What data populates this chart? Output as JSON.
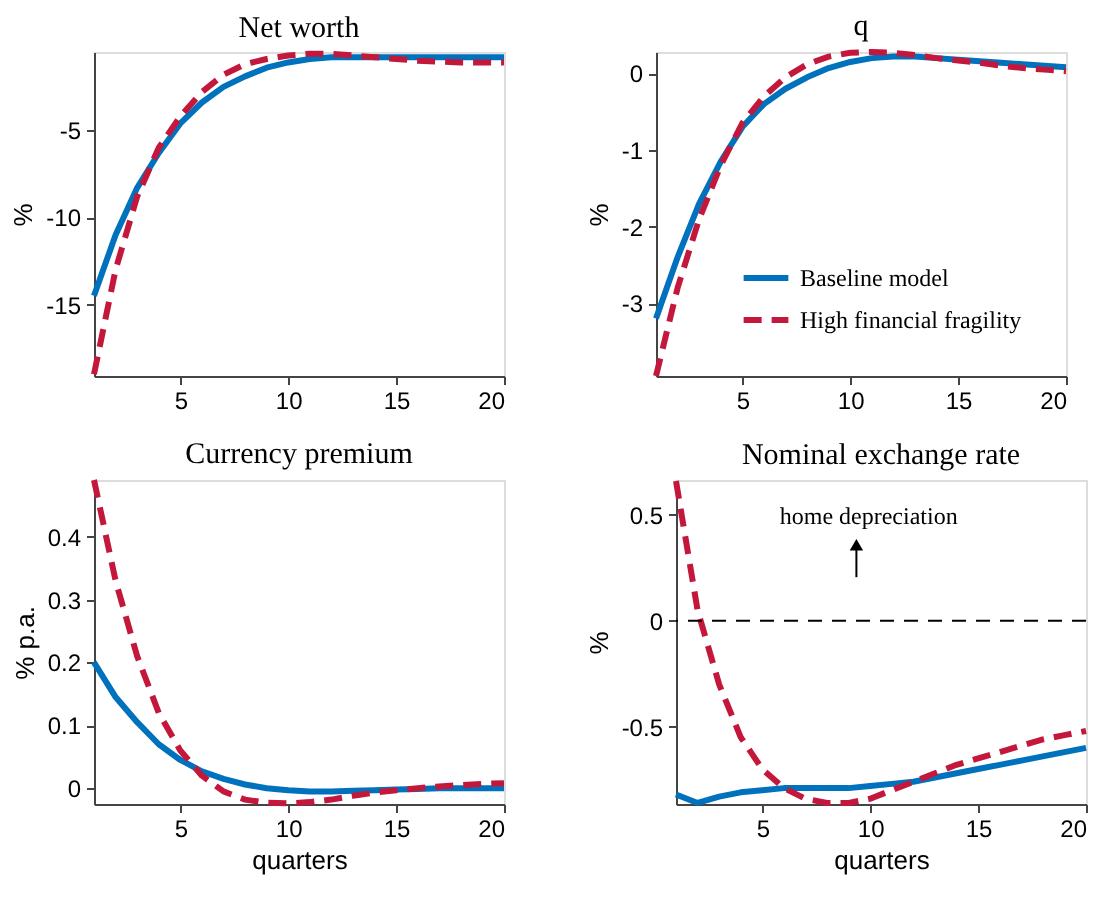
{
  "chart_data": [
    {
      "type": "line",
      "title": "Net worth",
      "ylabel": "%",
      "x": [
        1,
        2,
        3,
        4,
        5,
        6,
        7,
        8,
        9,
        10,
        11,
        12,
        13,
        14,
        15,
        16,
        17,
        18,
        19,
        20
      ],
      "xlim": [
        1,
        20
      ],
      "xticks": [
        5,
        10,
        15,
        20
      ],
      "ylim": [
        -19.1,
        -0.5
      ],
      "yticks": [
        -15,
        -10,
        -5
      ],
      "grid": false,
      "legend": false,
      "series": [
        {
          "color": "#0072bd",
          "line_style": "solid",
          "values": [
            -14.5,
            -11,
            -8.3,
            -6.3,
            -4.6,
            -3.4,
            -2.5,
            -1.9,
            -1.4,
            -1.1,
            -0.9,
            -0.8,
            -0.8,
            -0.8,
            -0.8,
            -0.8,
            -0.8,
            -0.8,
            -0.8,
            -0.8
          ]
        },
        {
          "color": "#c3183c",
          "line_style": "dashed",
          "values": [
            -19,
            -13,
            -8.8,
            -6,
            -4.2,
            -2.8,
            -1.8,
            -1.2,
            -0.9,
            -0.7,
            -0.6,
            -0.6,
            -0.7,
            -0.8,
            -0.9,
            -1.0,
            -1.05,
            -1.1,
            -1.1,
            -1.1
          ]
        }
      ]
    },
    {
      "type": "line",
      "title": "q",
      "ylabel": "%",
      "x": [
        1,
        2,
        3,
        4,
        5,
        6,
        7,
        8,
        9,
        10,
        11,
        12,
        13,
        14,
        15,
        16,
        17,
        18,
        19,
        20
      ],
      "xlim": [
        1,
        20
      ],
      "xticks": [
        5,
        10,
        15,
        20
      ],
      "ylim": [
        -3.95,
        0.28
      ],
      "yticks": [
        -3,
        -2,
        -1,
        0
      ],
      "grid": false,
      "legend": "bottom right",
      "series": [
        {
          "name": "Baseline model",
          "color": "#0072bd",
          "line_style": "solid",
          "values": [
            -3.2,
            -2.4,
            -1.7,
            -1.15,
            -0.7,
            -0.4,
            -0.2,
            -0.05,
            0.07,
            0.15,
            0.2,
            0.22,
            0.22,
            0.2,
            0.18,
            0.16,
            0.14,
            0.12,
            0.1,
            0.08
          ]
        },
        {
          "name": "High financial fragility",
          "color": "#c3183c",
          "line_style": "dashed",
          "values": [
            -3.95,
            -2.8,
            -1.9,
            -1.2,
            -0.65,
            -0.3,
            -0.05,
            0.12,
            0.22,
            0.27,
            0.28,
            0.27,
            0.24,
            0.2,
            0.17,
            0.14,
            0.1,
            0.07,
            0.05,
            0.03
          ]
        }
      ]
    },
    {
      "type": "line",
      "title": "Currency premium",
      "xlabel": "quarters",
      "ylabel": "% p.a.",
      "x": [
        1,
        2,
        3,
        4,
        5,
        6,
        7,
        8,
        9,
        10,
        11,
        12,
        13,
        14,
        15,
        16,
        17,
        18,
        19,
        20
      ],
      "xlim": [
        1,
        20
      ],
      "xticks": [
        5,
        10,
        15,
        20
      ],
      "ylim": [
        -0.025,
        0.49
      ],
      "yticks": [
        0,
        0.1,
        0.2,
        0.3,
        0.4
      ],
      "grid": false,
      "legend": false,
      "series": [
        {
          "color": "#0072bd",
          "line_style": "solid",
          "values": [
            0.2,
            0.145,
            0.105,
            0.07,
            0.045,
            0.027,
            0.015,
            0.006,
            0.0,
            -0.003,
            -0.005,
            -0.005,
            -0.004,
            -0.003,
            -0.002,
            -0.001,
            0,
            0,
            0,
            0
          ]
        },
        {
          "color": "#c3183c",
          "line_style": "dashed",
          "values": [
            0.49,
            0.33,
            0.21,
            0.12,
            0.06,
            0.02,
            -0.005,
            -0.018,
            -0.023,
            -0.024,
            -0.022,
            -0.018,
            -0.012,
            -0.007,
            -0.003,
            0,
            0.003,
            0.005,
            0.007,
            0.008
          ]
        }
      ]
    },
    {
      "type": "line",
      "title": "Nominal exchange rate",
      "xlabel": "quarters",
      "ylabel": "%",
      "x": [
        1,
        2,
        3,
        4,
        5,
        6,
        7,
        8,
        9,
        10,
        11,
        12,
        13,
        14,
        15,
        16,
        17,
        18,
        19,
        20
      ],
      "xlim": [
        1,
        20
      ],
      "xticks": [
        5,
        10,
        15,
        20
      ],
      "ylim": [
        -0.865,
        0.665
      ],
      "yticks": [
        -0.5,
        0,
        0.5
      ],
      "grid": false,
      "legend": false,
      "ref_lines": [
        {
          "axis": "y",
          "value": 0,
          "color": "#000000",
          "line_style": "dashed"
        }
      ],
      "annotations": [
        "home depreciation"
      ],
      "series": [
        {
          "color": "#0072bd",
          "line_style": "solid",
          "values": [
            -0.82,
            -0.86,
            -0.83,
            -0.81,
            -0.8,
            -0.79,
            -0.79,
            -0.79,
            -0.79,
            -0.78,
            -0.77,
            -0.76,
            -0.74,
            -0.72,
            -0.7,
            -0.68,
            -0.66,
            -0.64,
            -0.62,
            -0.6
          ]
        },
        {
          "color": "#c3183c",
          "line_style": "dashed",
          "values": [
            0.66,
            0.05,
            -0.3,
            -0.55,
            -0.7,
            -0.79,
            -0.84,
            -0.86,
            -0.86,
            -0.84,
            -0.8,
            -0.76,
            -0.72,
            -0.68,
            -0.65,
            -0.62,
            -0.59,
            -0.56,
            -0.54,
            -0.52
          ]
        }
      ]
    }
  ]
}
